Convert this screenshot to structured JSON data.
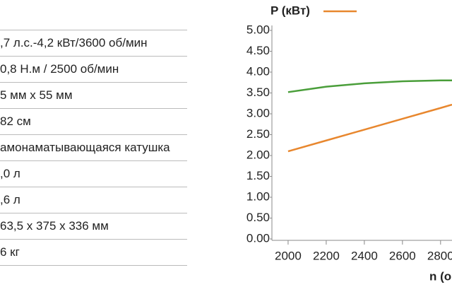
{
  "table": {
    "rows": [
      ",7 л.с.-4,2 кВт/3600 об/мин",
      "0,8 Н.м / 2500 об/мин",
      "5 мм x 55 мм",
      "82 см",
      "амонаматывающаяся катушка",
      ",0 л",
      ",6 л",
      "63,5 x 375 x 336 мм",
      "6 кг"
    ]
  },
  "chart_data": {
    "type": "line",
    "x_label": "n (о",
    "x": [
      2000,
      2200,
      2400,
      2600,
      2800,
      2860
    ],
    "series": [
      {
        "name": "P (кВт)",
        "color": "#e8872e",
        "values": [
          2.1,
          2.36,
          2.62,
          2.88,
          3.14,
          3.22
        ]
      },
      {
        "color": "#4a9e3a",
        "values": [
          3.52,
          3.65,
          3.73,
          3.78,
          3.8,
          3.8
        ]
      }
    ],
    "xlim": [
      1915,
      2860
    ],
    "ylim": [
      0,
      5
    ],
    "xticks": [
      2000,
      2200,
      2400,
      2600,
      2800
    ],
    "yticks": [
      {
        "value": 0,
        "label": "0.00"
      },
      {
        "value": 0.5,
        "label": "0.50"
      },
      {
        "value": 1,
        "label": "1.00"
      },
      {
        "value": 1.5,
        "label": "1.50"
      },
      {
        "value": 2,
        "label": "2.00"
      },
      {
        "value": 2.5,
        "label": "2.50"
      },
      {
        "value": 3,
        "label": "3.00"
      },
      {
        "value": 3.5,
        "label": "3.50"
      },
      {
        "value": 4,
        "label": "4.00"
      },
      {
        "value": 4.5,
        "label": "4.50"
      },
      {
        "value": 5,
        "label": "5.00"
      }
    ]
  }
}
